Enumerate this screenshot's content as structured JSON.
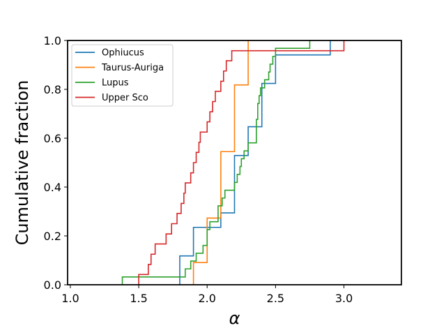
{
  "chart_data": {
    "type": "line",
    "step": true,
    "xlabel": "α",
    "ylabel": "Cumulative fraction",
    "xlim": [
      0.98,
      3.42
    ],
    "ylim": [
      0.0,
      1.0
    ],
    "xticks": [
      1.0,
      1.5,
      2.0,
      2.5,
      3.0
    ],
    "xtick_labels": [
      "1.0",
      "1.5",
      "2.0",
      "2.5",
      "3.0"
    ],
    "yticks": [
      0.0,
      0.2,
      0.4,
      0.6,
      0.8,
      1.0
    ],
    "ytick_labels": [
      "0.0",
      "0.2",
      "0.4",
      "0.6",
      "0.8",
      "1.0"
    ],
    "grid": false,
    "legend_position": "top-left",
    "series": [
      {
        "name": "Ophiucus",
        "color": "#1f77b4",
        "x": [
          1.8,
          1.9,
          2.1,
          2.2,
          2.3,
          2.4,
          2.5,
          2.9
        ],
        "y": [
          0.118,
          0.235,
          0.294,
          0.529,
          0.647,
          0.824,
          0.941,
          1.0
        ]
      },
      {
        "name": "Taurus-Auriga",
        "color": "#ff7f0e",
        "x": [
          1.9,
          2.0,
          2.1,
          2.2,
          2.3
        ],
        "y": [
          0.091,
          0.273,
          0.545,
          0.818,
          1.0
        ]
      },
      {
        "name": "Lupus",
        "color": "#2ca02c",
        "x": [
          1.38,
          1.84,
          1.88,
          1.92,
          1.97,
          2.0,
          2.02,
          2.08,
          2.11,
          2.13,
          2.2,
          2.22,
          2.24,
          2.25,
          2.27,
          2.3,
          2.36,
          2.37,
          2.38,
          2.39,
          2.42,
          2.45,
          2.46,
          2.48,
          2.5,
          2.52,
          2.73,
          2.75
        ],
        "y": [
          0.032,
          0.065,
          0.097,
          0.129,
          0.161,
          0.226,
          0.258,
          0.323,
          0.355,
          0.387,
          0.419,
          0.452,
          0.484,
          0.516,
          0.548,
          0.581,
          0.677,
          0.742,
          0.774,
          0.806,
          0.839,
          0.871,
          0.903,
          0.935,
          0.968,
          0.968,
          0.968,
          1.0
        ]
      },
      {
        "name": "Upper Sco",
        "color": "#d62728",
        "x": [
          1.5,
          1.57,
          1.59,
          1.62,
          1.7,
          1.74,
          1.78,
          1.81,
          1.83,
          1.84,
          1.88,
          1.9,
          1.92,
          1.94,
          1.95,
          2.0,
          2.02,
          2.04,
          2.06,
          2.1,
          2.12,
          2.14,
          2.18,
          2.22,
          2.26,
          2.28,
          2.36,
          2.94,
          3.0
        ],
        "y": [
          0.042,
          0.083,
          0.125,
          0.167,
          0.208,
          0.25,
          0.292,
          0.333,
          0.375,
          0.417,
          0.458,
          0.5,
          0.542,
          0.583,
          0.625,
          0.667,
          0.708,
          0.75,
          0.792,
          0.833,
          0.875,
          0.917,
          0.958,
          0.958,
          0.958,
          0.958,
          0.958,
          0.958,
          1.0
        ]
      }
    ]
  }
}
